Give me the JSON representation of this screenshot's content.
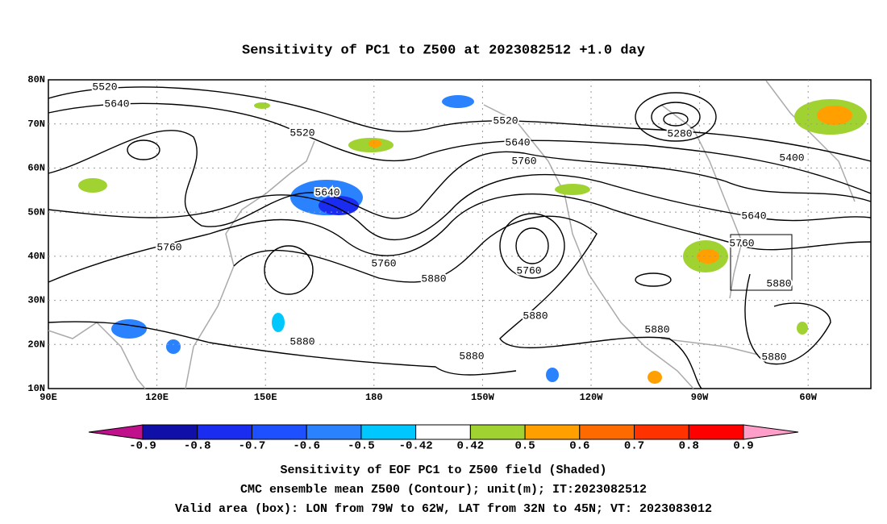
{
  "title": "Sensitivity of PC1 to Z500 at 2023082512 +1.0 day",
  "map": {
    "lon_ticks": [
      "90E",
      "120E",
      "150E",
      "180",
      "150W",
      "120W",
      "90W",
      "60W"
    ],
    "lat_ticks": [
      "80N",
      "70N",
      "60N",
      "50N",
      "40N",
      "30N",
      "20N",
      "10N"
    ],
    "contour_labels": [
      "5520",
      "5640",
      "5520",
      "5640",
      "5760",
      "5760",
      "5880",
      "5760",
      "5880",
      "5880",
      "5880",
      "5520",
      "5640",
      "5760",
      "5280",
      "5400",
      "5640",
      "5760",
      "5880",
      "5880",
      "5880"
    ]
  },
  "colorbar": {
    "ticks": [
      -0.9,
      -0.8,
      -0.7,
      -0.6,
      -0.5,
      -0.42,
      0.42,
      0.5,
      0.6,
      0.7,
      0.8,
      0.9
    ],
    "colors": [
      "#1010a8",
      "#1a2cf0",
      "#1e50ff",
      "#2a82ff",
      "#00c8ff",
      "#ffffff",
      "#a0d232",
      "#ffa000",
      "#ff6a00",
      "#ff3200",
      "#ff0000"
    ],
    "under_color": "#c0108c",
    "over_color": "#ff9ec8"
  },
  "footer": [
    "Sensitivity of EOF PC1 to Z500 field (Shaded)",
    "CMC ensemble mean Z500 (Contour); unit(m); IT:2023082512",
    "Valid area (box): LON from 79W to 62W, LAT from 32N to 45N; VT: 2023083012"
  ]
}
